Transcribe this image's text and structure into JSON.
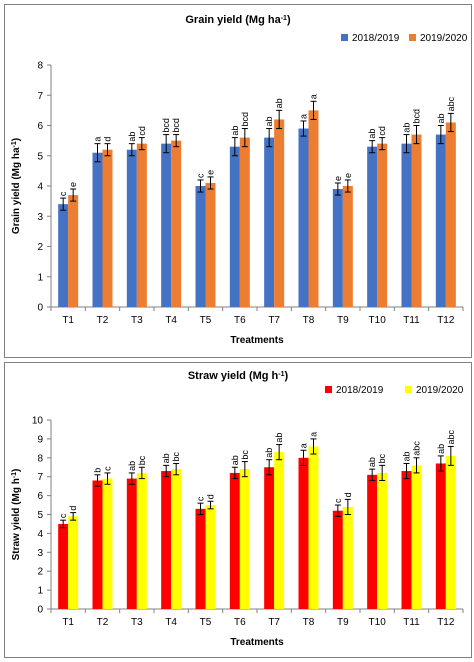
{
  "chart_data": [
    {
      "type": "bar",
      "title": "Grain yield  (Mg ha",
      "title_sup": "-1",
      "title_end": ")",
      "xlabel": "Treatments",
      "ylabel": "Grain yield  (Mg ha",
      "ylabel_sup": "-1",
      "ylabel_end": ")",
      "ylim": [
        0,
        8
      ],
      "yticks": [
        "0",
        "1",
        "2",
        "3",
        "4",
        "5",
        "6",
        "7",
        "8"
      ],
      "legend_position": "top-right",
      "grid": false,
      "categories": [
        "T1",
        "T2",
        "T3",
        "T4",
        "T5",
        "T6",
        "T7",
        "T8",
        "T9",
        "T10",
        "T11",
        "T12"
      ],
      "series": [
        {
          "name": "2018/2019",
          "color": "#4472c4",
          "values": [
            3.4,
            5.1,
            5.2,
            5.4,
            4.0,
            5.3,
            5.6,
            5.9,
            3.9,
            5.3,
            5.4,
            5.7
          ],
          "errors": [
            0.2,
            0.3,
            0.2,
            0.3,
            0.2,
            0.3,
            0.3,
            0.25,
            0.2,
            0.2,
            0.3,
            0.3
          ],
          "labels": [
            "c",
            "a",
            "ab",
            "bcd",
            "c",
            "ab",
            "ab",
            "a",
            "e",
            "ab",
            "ab",
            "ab"
          ]
        },
        {
          "name": "2019/2020",
          "color": "#ed7d31",
          "values": [
            3.7,
            5.2,
            5.4,
            5.5,
            4.1,
            5.6,
            6.2,
            6.5,
            4.0,
            5.4,
            5.7,
            6.1
          ],
          "errors": [
            0.2,
            0.2,
            0.2,
            0.2,
            0.2,
            0.3,
            0.3,
            0.3,
            0.2,
            0.2,
            0.3,
            0.3
          ],
          "labels": [
            "e",
            "d",
            "cd",
            "bcd",
            "e",
            "bcd",
            "ab",
            "a",
            "e",
            "cd",
            "bcd",
            "abc"
          ]
        }
      ]
    },
    {
      "type": "bar",
      "title": "Straw yield (Mg h",
      "title_sup": "-1",
      "title_end": ")",
      "xlabel": "Treatments",
      "ylabel": "Straw yield (Mg h",
      "ylabel_sup": "-1",
      "ylabel_end": ")",
      "ylim": [
        0,
        10
      ],
      "yticks": [
        "0",
        "1",
        "2",
        "3",
        "4",
        "5",
        "6",
        "7",
        "8",
        "9",
        "10"
      ],
      "legend_position": "top-right",
      "grid": false,
      "categories": [
        "T1",
        "T2",
        "T3",
        "T4",
        "T5",
        "T6",
        "T7",
        "T8",
        "T9",
        "T10",
        "T11",
        "T12"
      ],
      "series": [
        {
          "name": "2018/2019",
          "color": "#ff0000",
          "values": [
            4.5,
            6.8,
            6.9,
            7.3,
            5.3,
            7.2,
            7.5,
            8.0,
            5.2,
            7.1,
            7.3,
            7.7
          ],
          "errors": [
            0.2,
            0.3,
            0.3,
            0.3,
            0.3,
            0.3,
            0.4,
            0.4,
            0.3,
            0.3,
            0.4,
            0.4
          ],
          "labels": [
            "c",
            "b",
            "ab",
            "ab",
            "c",
            "ab",
            "ab",
            "a",
            "c",
            "ab",
            "ab",
            "ab"
          ]
        },
        {
          "name": "2019/2020",
          "color": "#ffff00",
          "values": [
            4.9,
            6.9,
            7.2,
            7.4,
            5.5,
            7.4,
            8.3,
            8.6,
            5.4,
            7.2,
            7.6,
            8.1
          ],
          "errors": [
            0.2,
            0.3,
            0.3,
            0.3,
            0.2,
            0.4,
            0.4,
            0.4,
            0.4,
            0.4,
            0.4,
            0.5
          ],
          "labels": [
            "d",
            "c",
            "bc",
            "bc",
            "d",
            "bc",
            "ab",
            "a",
            "d",
            "bc",
            "abc",
            "abc"
          ]
        }
      ]
    }
  ]
}
